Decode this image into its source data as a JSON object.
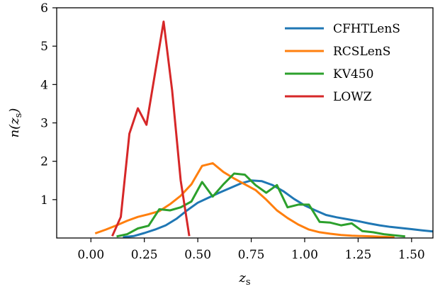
{
  "chart_data": {
    "type": "line",
    "xlabel": "z_s",
    "ylabel": "n(z_s)",
    "xlim": [
      -0.16,
      1.6
    ],
    "ylim": [
      0,
      6
    ],
    "xticks": [
      "0.00",
      "0.25",
      "0.50",
      "0.75",
      "1.00",
      "1.25",
      "1.50"
    ],
    "yticks": [
      "1",
      "2",
      "3",
      "4",
      "5",
      "6"
    ],
    "grid": false,
    "legend_position": "top-right",
    "series": [
      {
        "name": "CFHTLenS",
        "color": "#1f77b4",
        "x": [
          0.15,
          0.2,
          0.25,
          0.3,
          0.35,
          0.4,
          0.45,
          0.5,
          0.55,
          0.6,
          0.65,
          0.7,
          0.75,
          0.8,
          0.85,
          0.9,
          0.95,
          1.0,
          1.05,
          1.1,
          1.15,
          1.2,
          1.25,
          1.3,
          1.35,
          1.4,
          1.45,
          1.5,
          1.55,
          1.6
        ],
        "y": [
          0.02,
          0.05,
          0.13,
          0.22,
          0.33,
          0.5,
          0.72,
          0.92,
          1.05,
          1.18,
          1.3,
          1.42,
          1.5,
          1.48,
          1.38,
          1.22,
          1.02,
          0.85,
          0.72,
          0.6,
          0.54,
          0.49,
          0.44,
          0.38,
          0.33,
          0.29,
          0.26,
          0.23,
          0.2,
          0.17
        ]
      },
      {
        "name": "RCSLenS",
        "color": "#ff7f0e",
        "x": [
          0.02,
          0.07,
          0.12,
          0.17,
          0.22,
          0.27,
          0.32,
          0.37,
          0.42,
          0.47,
          0.52,
          0.57,
          0.62,
          0.67,
          0.72,
          0.77,
          0.82,
          0.87,
          0.92,
          0.97,
          1.02,
          1.07,
          1.12,
          1.17,
          1.22,
          1.27,
          1.32,
          1.37,
          1.42
        ],
        "y": [
          0.12,
          0.22,
          0.33,
          0.45,
          0.55,
          0.62,
          0.7,
          0.88,
          1.1,
          1.4,
          1.88,
          1.95,
          1.72,
          1.55,
          1.4,
          1.25,
          1.0,
          0.72,
          0.52,
          0.35,
          0.22,
          0.15,
          0.11,
          0.08,
          0.06,
          0.05,
          0.04,
          0.03,
          0.02
        ]
      },
      {
        "name": "KV450",
        "color": "#2ca02c",
        "x": [
          0.12,
          0.17,
          0.22,
          0.27,
          0.32,
          0.37,
          0.42,
          0.47,
          0.52,
          0.57,
          0.62,
          0.67,
          0.72,
          0.77,
          0.82,
          0.87,
          0.92,
          0.97,
          1.02,
          1.07,
          1.12,
          1.17,
          1.22,
          1.27,
          1.32,
          1.37,
          1.42,
          1.47
        ],
        "y": [
          0.04,
          0.1,
          0.25,
          0.32,
          0.75,
          0.72,
          0.8,
          0.95,
          1.46,
          1.08,
          1.4,
          1.68,
          1.65,
          1.38,
          1.18,
          1.38,
          0.8,
          0.87,
          0.87,
          0.42,
          0.4,
          0.33,
          0.38,
          0.18,
          0.15,
          0.1,
          0.07,
          0.04
        ]
      },
      {
        "name": "LOWZ",
        "color": "#d62728",
        "x": [
          0.1,
          0.14,
          0.18,
          0.22,
          0.26,
          0.34,
          0.38,
          0.42,
          0.46
        ],
        "y": [
          0.05,
          0.55,
          2.72,
          3.38,
          2.95,
          5.64,
          3.85,
          1.5,
          0.05
        ]
      }
    ]
  }
}
